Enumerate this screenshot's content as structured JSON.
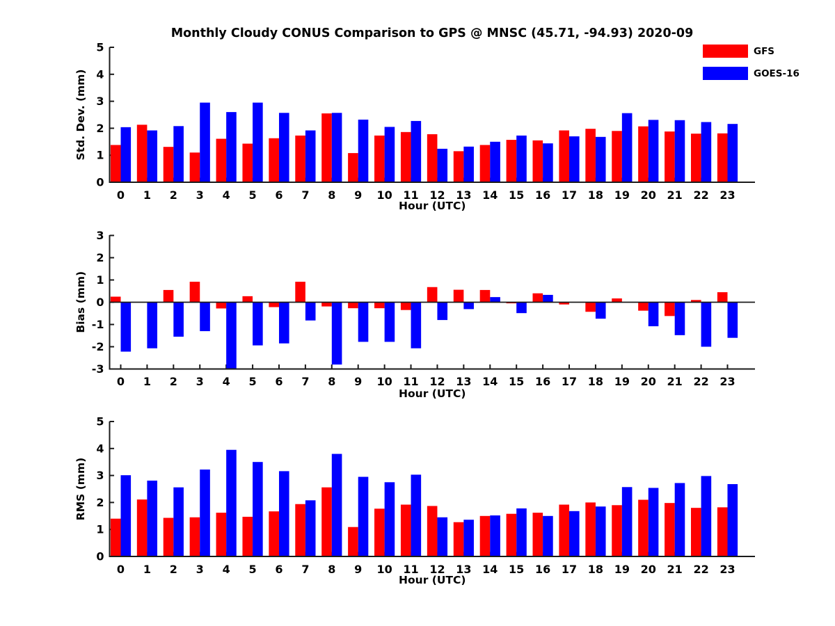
{
  "title": "Monthly Cloudy CONUS Comparison to GPS @ MNSC (45.71, -94.93) 2020-09",
  "legend": [
    {
      "label": "GFS",
      "color": "#ff0000"
    },
    {
      "label": "GOES-16",
      "color": "#0000ff"
    }
  ],
  "colors": {
    "gfs": "#ff0000",
    "goes16": "#0000ff",
    "axis": "#1a1a1a"
  },
  "chart_data": [
    {
      "type": "bar",
      "ylabel": "Std. Dev. (mm)",
      "xlabel": "Hour (UTC)",
      "categories": [
        "0",
        "1",
        "2",
        "3",
        "4",
        "5",
        "6",
        "7",
        "8",
        "9",
        "10",
        "11",
        "12",
        "13",
        "14",
        "15",
        "16",
        "17",
        "18",
        "19",
        "20",
        "21",
        "22",
        "23"
      ],
      "ylim": [
        0,
        5
      ],
      "yticks": [
        0,
        1,
        2,
        3,
        4,
        5
      ],
      "grid": false,
      "legend_position": "upper-right-outside",
      "series": [
        {
          "name": "GFS",
          "color": "#ff0000",
          "values": [
            1.38,
            2.13,
            1.31,
            1.1,
            1.61,
            1.43,
            1.63,
            1.73,
            2.55,
            1.08,
            1.73,
            1.86,
            1.78,
            1.15,
            1.38,
            1.57,
            1.55,
            1.92,
            1.98,
            1.9,
            2.07,
            1.88,
            1.8,
            1.81
          ]
        },
        {
          "name": "GOES-16",
          "color": "#0000ff",
          "values": [
            2.04,
            1.92,
            2.08,
            2.95,
            2.6,
            2.95,
            2.57,
            1.92,
            2.57,
            2.32,
            2.05,
            2.27,
            1.24,
            1.32,
            1.5,
            1.73,
            1.44,
            1.7,
            1.68,
            2.56,
            2.31,
            2.3,
            2.23,
            2.16
          ]
        }
      ]
    },
    {
      "type": "bar",
      "ylabel": "Bias (mm)",
      "xlabel": "Hour (UTC)",
      "categories": [
        "0",
        "1",
        "2",
        "3",
        "4",
        "5",
        "6",
        "7",
        "8",
        "9",
        "10",
        "11",
        "12",
        "13",
        "14",
        "15",
        "16",
        "17",
        "18",
        "19",
        "20",
        "21",
        "22",
        "23"
      ],
      "ylim": [
        -3,
        3
      ],
      "yticks": [
        -3,
        -2,
        -1,
        0,
        1,
        2,
        3
      ],
      "grid": false,
      "series": [
        {
          "name": "GFS",
          "color": "#ff0000",
          "values": [
            0.25,
            0.0,
            0.55,
            0.92,
            -0.28,
            0.27,
            -0.22,
            0.92,
            -0.19,
            -0.27,
            -0.27,
            -0.35,
            0.68,
            0.56,
            0.55,
            -0.05,
            0.4,
            -0.1,
            -0.43,
            0.17,
            -0.38,
            -0.62,
            0.1,
            0.45
          ]
        },
        {
          "name": "GOES-16",
          "color": "#0000ff",
          "values": [
            -2.22,
            -2.07,
            -1.55,
            -1.3,
            -2.98,
            -1.94,
            -1.85,
            -0.82,
            -2.8,
            -1.78,
            -1.78,
            -2.07,
            -0.8,
            -0.31,
            0.23,
            -0.49,
            0.33,
            0.0,
            -0.74,
            0.0,
            -1.08,
            -1.48,
            -2.0,
            -1.6
          ]
        }
      ]
    },
    {
      "type": "bar",
      "ylabel": "RMS (mm)",
      "xlabel": "Hour (UTC)",
      "categories": [
        "0",
        "1",
        "2",
        "3",
        "4",
        "5",
        "6",
        "7",
        "8",
        "9",
        "10",
        "11",
        "12",
        "13",
        "14",
        "15",
        "16",
        "17",
        "18",
        "19",
        "20",
        "21",
        "22",
        "23"
      ],
      "ylim": [
        0,
        5
      ],
      "yticks": [
        0,
        1,
        2,
        3,
        4,
        5
      ],
      "grid": false,
      "series": [
        {
          "name": "GFS",
          "color": "#ff0000",
          "values": [
            1.4,
            2.11,
            1.43,
            1.45,
            1.62,
            1.47,
            1.67,
            1.94,
            2.56,
            1.09,
            1.77,
            1.92,
            1.87,
            1.27,
            1.5,
            1.58,
            1.62,
            1.92,
            2.0,
            1.9,
            2.1,
            1.98,
            1.8,
            1.82
          ]
        },
        {
          "name": "GOES-16",
          "color": "#0000ff",
          "values": [
            3.01,
            2.81,
            2.56,
            3.22,
            3.95,
            3.5,
            3.16,
            2.08,
            3.8,
            2.95,
            2.75,
            3.03,
            1.45,
            1.36,
            1.52,
            1.78,
            1.5,
            1.68,
            1.85,
            2.57,
            2.54,
            2.72,
            2.98,
            2.68
          ]
        }
      ]
    }
  ]
}
